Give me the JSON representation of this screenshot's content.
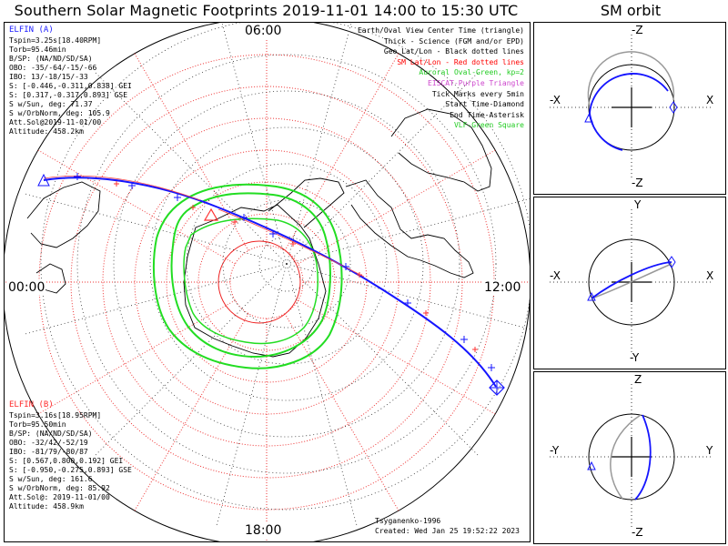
{
  "title": "Southern Solar Magnetic Footprints 2019-11-01 14:00 to 15:30 UTC",
  "orbit_title": "SM orbit",
  "hours": {
    "top": "06:00",
    "left": "00:00",
    "right": "12:00",
    "bottom": "18:00"
  },
  "elfin_a": {
    "name": "ELFIN (A)",
    "color": "#1a1aff",
    "lines": [
      "Tspin=3.25s[18.40RPM]",
      "Torb=95.46min",
      "B/SP: (NA/ND/SD/SA)",
      "OBO: -35/-64/-15/-66",
      "IBO: 13/-18/15/-33",
      "S: [-0.446,-0.311,0.838] GEI",
      "S: [0.317,-0.317,0.893] GSE",
      "S w/Sun, deg: 71.37",
      "S w/OrbNorm, deg: 105.9",
      "Att.Sol@2019-11-01/00",
      "Altitude: 458.2km"
    ]
  },
  "elfin_b": {
    "name": "ELFIN (B)",
    "color": "#ff2a2a",
    "lines": [
      "Tspin=3.16s[18.95RPM]",
      "Torb=95.50min",
      "B/SP: (NA/ND/SD/SA)",
      "OBO: -32/42/-52/19",
      "IBO: -81/79/-80/87",
      "S: [0.567,0.800,0.192] GEI",
      "S: [-0.950,-0.275,0.893] GSE",
      "S w/Sun, deg: 161.6",
      "S w/OrbNorm, deg: 85.92",
      "Att.Sol@: 2019-11-01/00",
      "Altitude: 458.9km"
    ]
  },
  "legend": [
    {
      "text": "Earth/Oval View Center Time (triangle)",
      "color": "#000000"
    },
    {
      "text": "Thick - Science (FGM and/or EPD)",
      "color": "#000000"
    },
    {
      "text": "Geo Lat/Lon - Black dotted lines",
      "color": "#000000"
    },
    {
      "text": "SM Lat/Lon - Red dotted lines",
      "color": "#ff0000"
    },
    {
      "text": "Auroral Oval-Green, kp=2",
      "color": "#22cc22"
    },
    {
      "text": "EISCAT-Purple Triangle",
      "color": "#cc44cc"
    },
    {
      "text": "Tick Marks every 5min",
      "color": "#000000"
    },
    {
      "text": "Start Time-Diamond",
      "color": "#000000"
    },
    {
      "text": "End Time-Asterisk",
      "color": "#000000"
    },
    {
      "text": "VLF-Green Square",
      "color": "#22cc22"
    }
  ],
  "credit": "Tsyganenko-1996",
  "created": "Created: Wed Jan 25 19:52:22 2023",
  "panels": [
    {
      "name": "xz",
      "top": "-Z",
      "bottom": "-Z",
      "left": "-X",
      "right": "X"
    },
    {
      "name": "xy",
      "top": "Y",
      "bottom": "-Y",
      "left": "-X",
      "right": "X"
    },
    {
      "name": "yz",
      "top": "Z",
      "bottom": "-Z",
      "left": "-Y",
      "right": "Y"
    }
  ]
}
